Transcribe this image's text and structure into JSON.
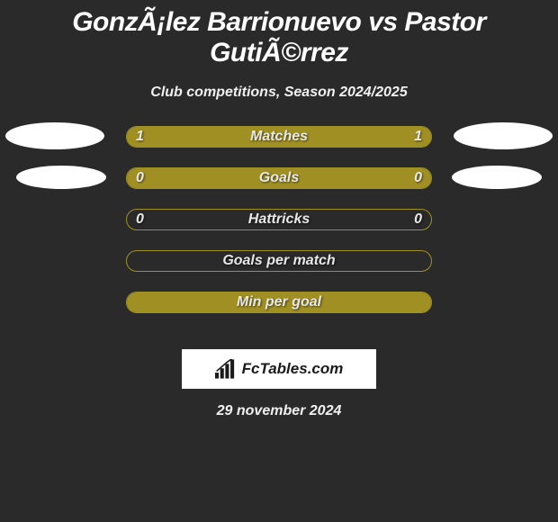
{
  "title": "GonzÃ¡lez Barrionuevo vs Pastor GutiÃ©rrez",
  "subtitle": "Club competitions, Season 2024/2025",
  "bar_color": "#a09024",
  "bar_border_color": "#a09024",
  "background_color": "#2a2a2a",
  "text_color": "#ffffff",
  "avatar_color": "#ffffff",
  "rows": [
    {
      "label": "Matches",
      "left": "1",
      "right": "1",
      "fill_pct": 100,
      "show_values": true,
      "avatar": "large"
    },
    {
      "label": "Goals",
      "left": "0",
      "right": "0",
      "fill_pct": 100,
      "show_values": true,
      "avatar": "small"
    },
    {
      "label": "Hattricks",
      "left": "0",
      "right": "0",
      "fill_pct": 0,
      "show_values": true,
      "avatar": "none"
    },
    {
      "label": "Goals per match",
      "left": "",
      "right": "",
      "fill_pct": 0,
      "show_values": false,
      "avatar": "none"
    },
    {
      "label": "Min per goal",
      "left": "",
      "right": "",
      "fill_pct": 100,
      "show_values": false,
      "avatar": "none"
    }
  ],
  "logo_text": "FcTables.com",
  "date": "29 november 2024"
}
